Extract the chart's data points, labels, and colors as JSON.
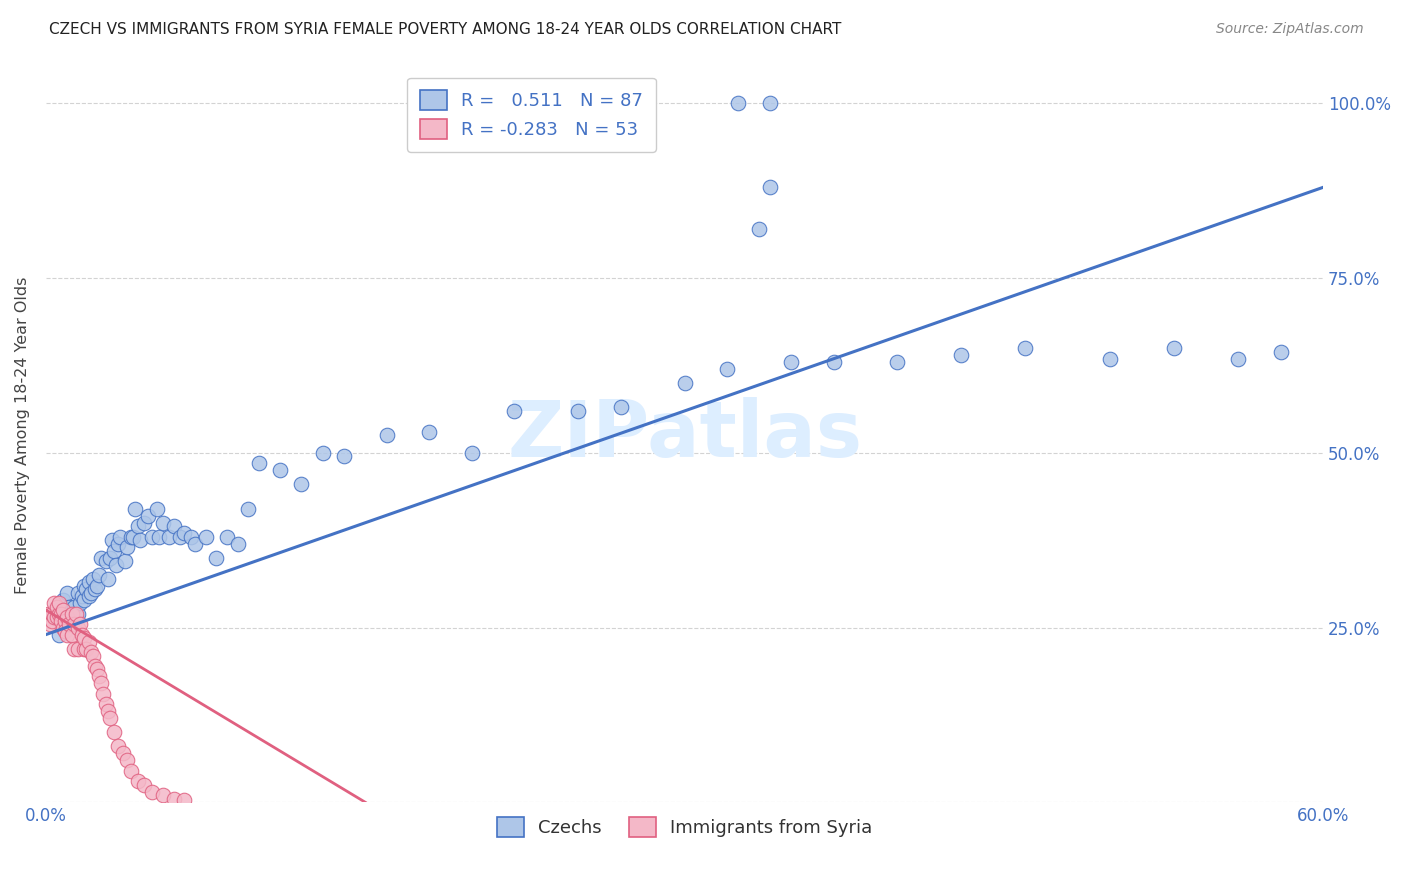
{
  "title": "CZECH VS IMMIGRANTS FROM SYRIA FEMALE POVERTY AMONG 18-24 YEAR OLDS CORRELATION CHART",
  "source": "Source: ZipAtlas.com",
  "ylabel": "Female Poverty Among 18-24 Year Olds",
  "xlim": [
    0.0,
    0.6
  ],
  "ylim": [
    0.0,
    1.05
  ],
  "xticks": [
    0.0,
    0.1,
    0.2,
    0.3,
    0.4,
    0.5,
    0.6
  ],
  "xticklabels": [
    "0.0%",
    "",
    "",
    "",
    "",
    "",
    "60.0%"
  ],
  "yticks": [
    0.0,
    0.25,
    0.5,
    0.75,
    1.0
  ],
  "yticklabels": [
    "",
    "25.0%",
    "50.0%",
    "75.0%",
    "100.0%"
  ],
  "czech_color": "#aec6e8",
  "syria_color": "#f4b8c8",
  "czech_line_color": "#4472c4",
  "syria_line_color": "#e06080",
  "background_color": "#ffffff",
  "grid_color": "#c8c8c8",
  "watermark_text": "ZIPatlas",
  "watermark_color": "#ddeeff",
  "R_czech": 0.511,
  "N_czech": 87,
  "R_syria": -0.283,
  "N_syria": 53,
  "czech_line_x0": 0.0,
  "czech_line_y0": 0.24,
  "czech_line_x1": 0.6,
  "czech_line_y1": 0.88,
  "syria_line_x0": 0.0,
  "syria_line_y0": 0.275,
  "syria_line_x1": 0.15,
  "syria_line_y1": 0.0,
  "czech_x": [
    0.005,
    0.006,
    0.007,
    0.007,
    0.008,
    0.008,
    0.009,
    0.01,
    0.01,
    0.011,
    0.011,
    0.012,
    0.013,
    0.014,
    0.015,
    0.015,
    0.016,
    0.017,
    0.018,
    0.018,
    0.019,
    0.02,
    0.02,
    0.021,
    0.022,
    0.023,
    0.024,
    0.025,
    0.026,
    0.028,
    0.029,
    0.03,
    0.031,
    0.032,
    0.033,
    0.034,
    0.035,
    0.037,
    0.038,
    0.04,
    0.041,
    0.042,
    0.043,
    0.044,
    0.046,
    0.048,
    0.05,
    0.052,
    0.053,
    0.055,
    0.058,
    0.06,
    0.063,
    0.065,
    0.068,
    0.07,
    0.075,
    0.08,
    0.085,
    0.09,
    0.095,
    0.1,
    0.11,
    0.12,
    0.13,
    0.14,
    0.16,
    0.18,
    0.2,
    0.22,
    0.25,
    0.27,
    0.3,
    0.32,
    0.35,
    0.37,
    0.4,
    0.43,
    0.46,
    0.5,
    0.53,
    0.56,
    0.58,
    0.325,
    0.34,
    0.335,
    0.34
  ],
  "czech_y": [
    0.27,
    0.24,
    0.265,
    0.28,
    0.26,
    0.29,
    0.27,
    0.265,
    0.3,
    0.26,
    0.28,
    0.27,
    0.28,
    0.265,
    0.3,
    0.27,
    0.285,
    0.295,
    0.29,
    0.31,
    0.305,
    0.315,
    0.295,
    0.3,
    0.32,
    0.305,
    0.31,
    0.325,
    0.35,
    0.345,
    0.32,
    0.35,
    0.375,
    0.36,
    0.34,
    0.37,
    0.38,
    0.345,
    0.365,
    0.38,
    0.38,
    0.42,
    0.395,
    0.375,
    0.4,
    0.41,
    0.38,
    0.42,
    0.38,
    0.4,
    0.38,
    0.395,
    0.38,
    0.385,
    0.38,
    0.37,
    0.38,
    0.35,
    0.38,
    0.37,
    0.42,
    0.485,
    0.475,
    0.455,
    0.5,
    0.495,
    0.525,
    0.53,
    0.5,
    0.56,
    0.56,
    0.565,
    0.6,
    0.62,
    0.63,
    0.63,
    0.63,
    0.64,
    0.65,
    0.635,
    0.65,
    0.635,
    0.645,
    1.0,
    1.0,
    0.82,
    0.88
  ],
  "syria_x": [
    0.001,
    0.002,
    0.003,
    0.003,
    0.004,
    0.004,
    0.005,
    0.005,
    0.006,
    0.006,
    0.007,
    0.007,
    0.008,
    0.008,
    0.009,
    0.009,
    0.01,
    0.01,
    0.011,
    0.012,
    0.012,
    0.013,
    0.013,
    0.014,
    0.015,
    0.015,
    0.016,
    0.017,
    0.018,
    0.018,
    0.019,
    0.02,
    0.021,
    0.022,
    0.023,
    0.024,
    0.025,
    0.026,
    0.027,
    0.028,
    0.029,
    0.03,
    0.032,
    0.034,
    0.036,
    0.038,
    0.04,
    0.043,
    0.046,
    0.05,
    0.055,
    0.06,
    0.065
  ],
  "syria_y": [
    0.27,
    0.255,
    0.26,
    0.27,
    0.285,
    0.265,
    0.28,
    0.265,
    0.27,
    0.285,
    0.27,
    0.26,
    0.275,
    0.25,
    0.26,
    0.245,
    0.265,
    0.24,
    0.255,
    0.27,
    0.24,
    0.255,
    0.22,
    0.27,
    0.25,
    0.22,
    0.255,
    0.24,
    0.22,
    0.235,
    0.22,
    0.23,
    0.215,
    0.21,
    0.195,
    0.19,
    0.18,
    0.17,
    0.155,
    0.14,
    0.13,
    0.12,
    0.1,
    0.08,
    0.07,
    0.06,
    0.045,
    0.03,
    0.025,
    0.015,
    0.01,
    0.005,
    0.003
  ]
}
